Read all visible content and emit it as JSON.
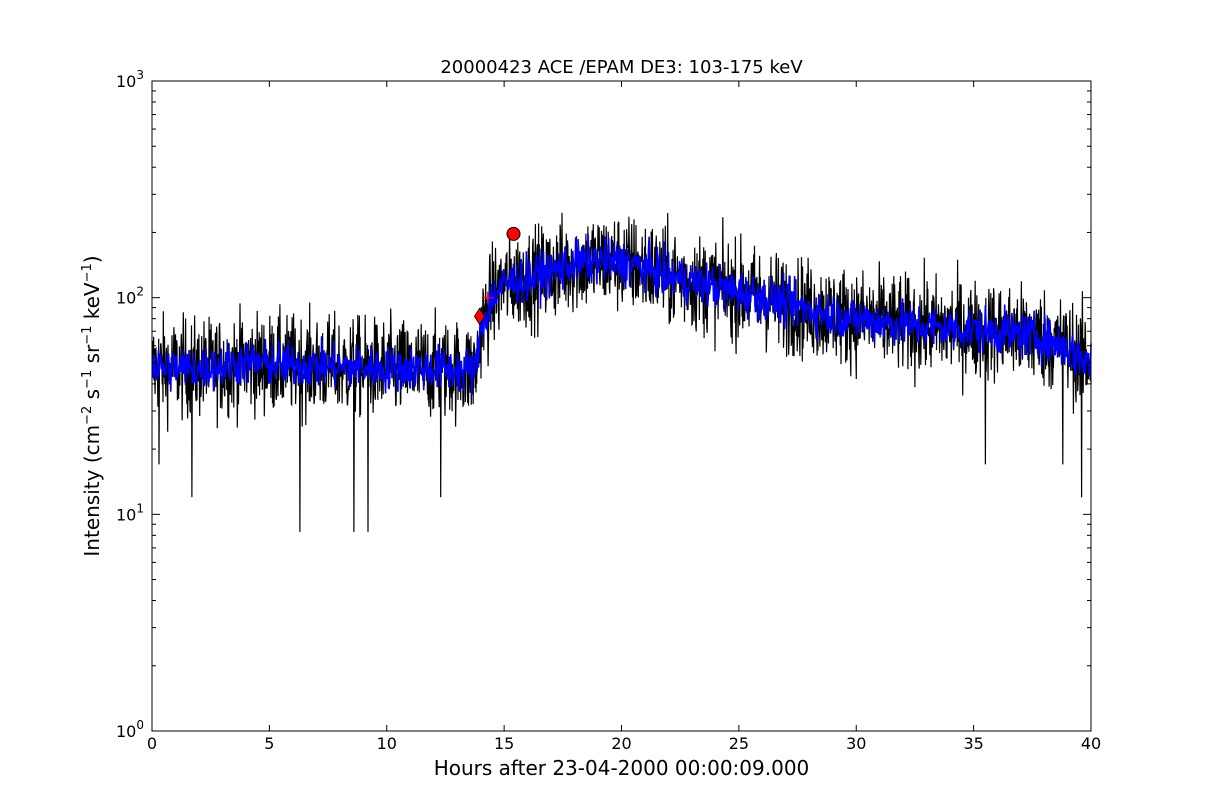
{
  "chart_data": {
    "type": "line",
    "title": "20000423 ACE /EPAM DE3: 103-175 keV",
    "xlabel": "Hours after 23-04-2000 00:00:09.000",
    "ylabel_main": "Intensity (cm",
    "ylabel_parts": [
      {
        "text": "Intensity (cm",
        "sup": false
      },
      {
        "text": "−2",
        "sup": true
      },
      {
        "text": " s",
        "sup": false
      },
      {
        "text": "−1",
        "sup": true
      },
      {
        "text": " sr",
        "sup": false
      },
      {
        "text": "−1",
        "sup": true
      },
      {
        "text": " keV",
        "sup": false
      },
      {
        "text": "−1",
        "sup": true
      },
      {
        "text": ")",
        "sup": false
      }
    ],
    "xlim": [
      0,
      40
    ],
    "ylim": [
      1,
      1000
    ],
    "yscale": "log",
    "grid": false,
    "x_ticks": [
      0,
      5,
      10,
      15,
      20,
      25,
      30,
      35,
      40
    ],
    "x_tick_labels": [
      "0",
      "5",
      "10",
      "15",
      "20",
      "25",
      "30",
      "35",
      "40"
    ],
    "y_ticks": [
      {
        "value": 1,
        "base": "10",
        "exp": "0"
      },
      {
        "value": 10,
        "base": "10",
        "exp": "1"
      },
      {
        "value": 100,
        "base": "10",
        "exp": "2"
      },
      {
        "value": 1000,
        "base": "10",
        "exp": "3"
      }
    ],
    "series": [
      {
        "role": "raw",
        "color": "#000000",
        "profile": {
          "x": [
            0,
            2,
            4,
            6,
            8,
            10,
            12,
            13.8,
            14.0,
            14.5,
            15.0,
            15.5,
            16,
            17,
            18,
            19,
            20,
            21,
            22,
            24,
            26,
            28,
            30,
            32,
            34,
            36,
            38,
            39,
            40
          ],
          "y": [
            48,
            47,
            50,
            49,
            48,
            47,
            47,
            46,
            72,
            100,
            115,
            120,
            122,
            132,
            145,
            148,
            145,
            138,
            125,
            112,
            100,
            88,
            80,
            75,
            72,
            70,
            65,
            58,
            50
          ]
        },
        "spikes_low": [
          {
            "x": 0.3,
            "y": 17
          },
          {
            "x": 1.7,
            "y": 12
          },
          {
            "x": 6.3,
            "y": 8.3
          },
          {
            "x": 8.6,
            "y": 8.3
          },
          {
            "x": 9.2,
            "y": 8.3
          },
          {
            "x": 12.3,
            "y": 12
          },
          {
            "x": 35.5,
            "y": 17
          },
          {
            "x": 38.8,
            "y": 17
          },
          {
            "x": 39.6,
            "y": 12
          }
        ]
      },
      {
        "role": "smoothed",
        "color": "#0000ff",
        "profile": {
          "x": [
            0,
            2,
            4,
            6,
            8,
            10,
            12,
            13.8,
            14.0,
            14.5,
            15.0,
            15.5,
            16,
            17,
            18,
            19,
            20,
            21,
            22,
            24,
            26,
            28,
            30,
            32,
            34,
            36,
            38,
            39,
            40
          ],
          "y": [
            48,
            47,
            50,
            49,
            48,
            47,
            47,
            46,
            72,
            100,
            115,
            120,
            122,
            132,
            145,
            148,
            145,
            138,
            125,
            112,
            100,
            88,
            80,
            75,
            72,
            70,
            65,
            58,
            50
          ]
        }
      }
    ],
    "markers": [
      {
        "shape": "diamond",
        "color": "#ff0000",
        "x": 13.95,
        "y": 82
      },
      {
        "shape": "plus",
        "color": "#ff0000",
        "x": 14.3,
        "y": 100
      },
      {
        "shape": "circle",
        "color": "#ff0000",
        "x": 15.4,
        "y": 197
      }
    ]
  }
}
